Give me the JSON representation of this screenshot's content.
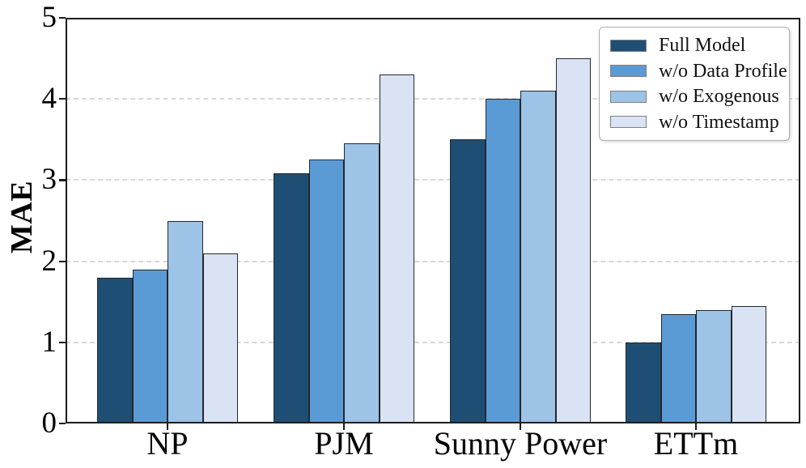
{
  "chart_data": {
    "type": "bar",
    "categories": [
      "NP",
      "PJM",
      "Sunny Power",
      "ETTm"
    ],
    "series": [
      {
        "name": "Full Model",
        "color": "#1F4E74",
        "values": [
          1.8,
          3.08,
          3.5,
          1.0
        ]
      },
      {
        "name": "w/o Data Profile",
        "color": "#5B9BD5",
        "values": [
          1.9,
          3.25,
          4.0,
          1.35
        ]
      },
      {
        "name": "w/o Exogenous",
        "color": "#9DC3E6",
        "values": [
          2.5,
          3.45,
          4.1,
          1.4
        ]
      },
      {
        "name": "w/o Timestamp",
        "color": "#DAE3F3",
        "values": [
          2.1,
          4.3,
          4.5,
          1.45
        ]
      }
    ],
    "title": "",
    "xlabel": "",
    "ylabel": "MAE",
    "ylim": [
      0,
      5
    ],
    "yticks": [
      0,
      1,
      2,
      3,
      4,
      5
    ],
    "grid": "horizontal-dashed",
    "grid_color": "#d8d8d8",
    "axis_color": "#1c1c1c",
    "bar_edge_color": "#23272e",
    "legend_position": "upper-right"
  }
}
